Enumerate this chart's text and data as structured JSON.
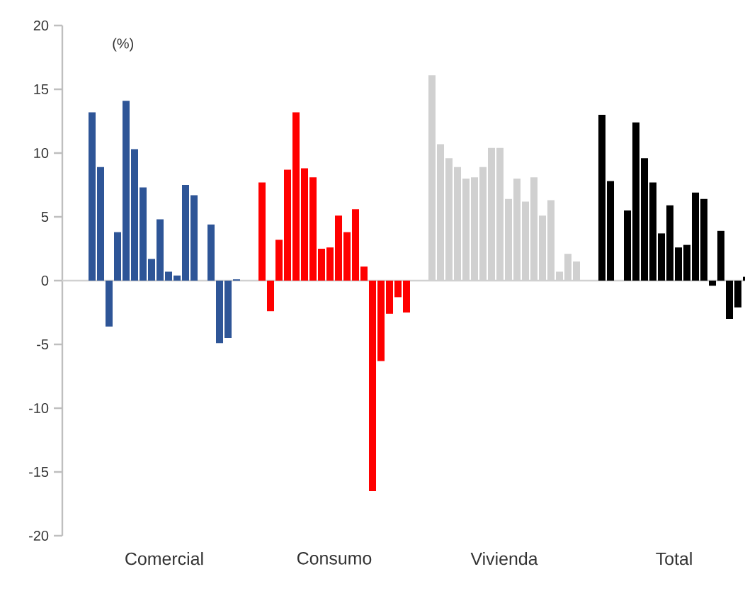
{
  "chart_data": {
    "type": "bar",
    "ylabel": "(%)",
    "categories": [
      "Comercial",
      "Consumo",
      "Vivienda",
      "Total"
    ],
    "ylim": [
      -20,
      20
    ],
    "yticks": [
      -20,
      -15,
      -10,
      -5,
      0,
      5,
      10,
      15,
      20
    ],
    "series": [
      {
        "colors": [
          "#2e5597",
          "#ff0000",
          "#d0d0d0",
          "#000000"
        ],
        "values": [
          13.2,
          7.7,
          16.1,
          13.0
        ]
      },
      {
        "colors": [
          "#2e5597",
          "#ff0000",
          "#d0d0d0",
          "#000000"
        ],
        "values": [
          8.9,
          -2.4,
          10.7,
          7.8
        ]
      },
      {
        "colors": [
          "#2e5597",
          "#ff0000",
          "#d0d0d0",
          "#000000"
        ],
        "values": [
          -3.6,
          3.2,
          9.6,
          null
        ]
      },
      {
        "colors": [
          "#2e5597",
          "#ff0000",
          "#d0d0d0",
          "#000000"
        ],
        "values": [
          3.8,
          8.7,
          8.9,
          5.5
        ]
      },
      {
        "colors": [
          "#2e5597",
          "#ff0000",
          "#d0d0d0",
          "#000000"
        ],
        "values": [
          14.1,
          13.2,
          8.0,
          12.4
        ]
      },
      {
        "colors": [
          "#2e5597",
          "#ff0000",
          "#d0d0d0",
          "#000000"
        ],
        "values": [
          10.3,
          8.8,
          8.1,
          9.6
        ]
      },
      {
        "colors": [
          "#2e5597",
          "#ff0000",
          "#d0d0d0",
          "#000000"
        ],
        "values": [
          7.3,
          8.1,
          8.9,
          7.7
        ]
      },
      {
        "colors": [
          "#2e5597",
          "#ff0000",
          "#d0d0d0",
          "#000000"
        ],
        "values": [
          1.7,
          2.5,
          10.4,
          3.7
        ]
      },
      {
        "colors": [
          "#2e5597",
          "#ff0000",
          "#d0d0d0",
          "#000000"
        ],
        "values": [
          4.8,
          2.6,
          10.4,
          5.9
        ]
      },
      {
        "colors": [
          "#2e5597",
          "#ff0000",
          "#d0d0d0",
          "#000000"
        ],
        "values": [
          0.7,
          5.1,
          6.4,
          2.6
        ]
      },
      {
        "colors": [
          "#2e5597",
          "#ff0000",
          "#d0d0d0",
          "#000000"
        ],
        "values": [
          0.4,
          3.8,
          8.0,
          2.8
        ]
      },
      {
        "colors": [
          "#2e5597",
          "#ff0000",
          "#d0d0d0",
          "#000000"
        ],
        "values": [
          7.5,
          5.6,
          6.2,
          6.9
        ]
      },
      {
        "colors": [
          "#2e5597",
          "#ff0000",
          "#d0d0d0",
          "#000000"
        ],
        "values": [
          6.7,
          1.1,
          8.1,
          6.4
        ]
      },
      {
        "colors": [
          "#2e5597",
          "#ff0000",
          "#d0d0d0",
          "#000000"
        ],
        "values": [
          null,
          -16.5,
          5.1,
          -0.4
        ]
      },
      {
        "colors": [
          "#2e5597",
          "#ff0000",
          "#d0d0d0",
          "#000000"
        ],
        "values": [
          4.4,
          -6.3,
          6.3,
          3.9
        ]
      },
      {
        "colors": [
          "#2e5597",
          "#ff0000",
          "#d0d0d0",
          "#000000"
        ],
        "values": [
          -4.9,
          -2.6,
          0.7,
          -3.0
        ]
      },
      {
        "colors": [
          "#2e5597",
          "#ff0000",
          "#d0d0d0",
          "#000000"
        ],
        "values": [
          -4.5,
          -1.3,
          2.1,
          -2.1
        ]
      },
      {
        "colors": [
          "#2e5597",
          "#ff0000",
          "#d0d0d0",
          "#000000"
        ],
        "values": [
          0.1,
          -2.5,
          1.5,
          0.3
        ]
      }
    ]
  }
}
